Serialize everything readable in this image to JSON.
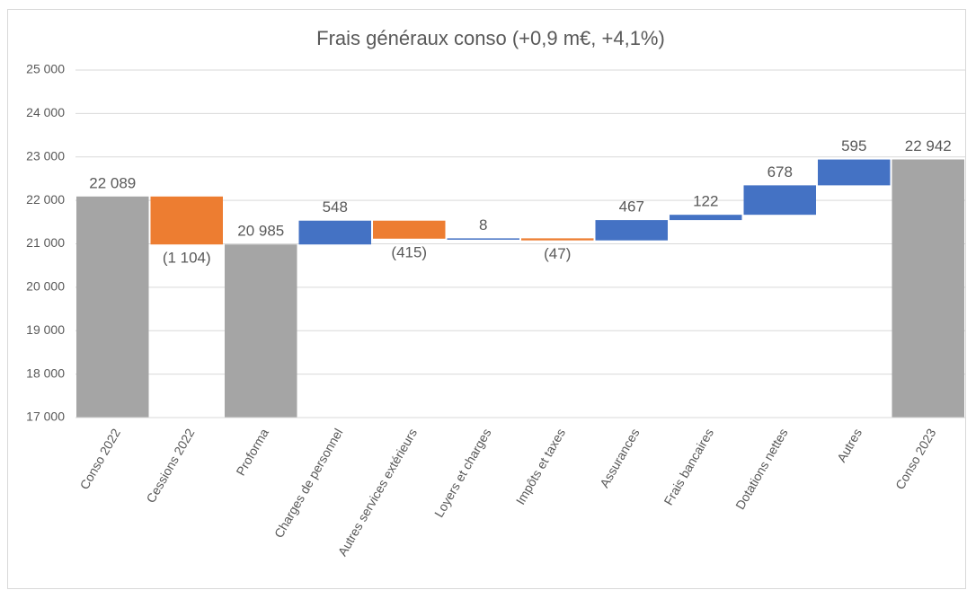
{
  "chart_data": {
    "type": "waterfall",
    "title": "Frais généraux conso (+0,9 m€, +4,1%)",
    "categories": [
      "Conso 2022",
      "Cessions 2022",
      "Proforma",
      "Charges de personnel",
      "Autres services extérieurs",
      "Loyers et charges",
      "Impôts et taxes",
      "Assurances",
      "Frais bancaires",
      "Dotations nettes",
      "Autres",
      "Conso 2023"
    ],
    "values": [
      22089,
      -1104,
      20985,
      548,
      -415,
      8,
      -47,
      467,
      122,
      678,
      595,
      22942
    ],
    "value_labels": [
      "22 089",
      "(1 104)",
      "20 985",
      "548",
      "(415)",
      "8",
      "(47)",
      "467",
      "122",
      "678",
      "595",
      "22 942"
    ],
    "measures": [
      "total",
      "relative",
      "total",
      "relative",
      "relative",
      "relative",
      "relative",
      "relative",
      "relative",
      "relative",
      "relative",
      "total"
    ],
    "total_color": "#a5a5a5",
    "increase_color": "#4472c4",
    "decrease_color": "#ed7d31",
    "ylim": [
      17000,
      25000
    ],
    "yticks": [
      {
        "value": 17000,
        "label": "17 000"
      },
      {
        "value": 18000,
        "label": "18 000"
      },
      {
        "value": 19000,
        "label": "19 000"
      },
      {
        "value": 20000,
        "label": "20 000"
      },
      {
        "value": 21000,
        "label": "21 000"
      },
      {
        "value": 22000,
        "label": "22 000"
      },
      {
        "value": 23000,
        "label": "23 000"
      },
      {
        "value": 24000,
        "label": "24 000"
      },
      {
        "value": 25000,
        "label": "25 000"
      }
    ],
    "grid": true
  }
}
